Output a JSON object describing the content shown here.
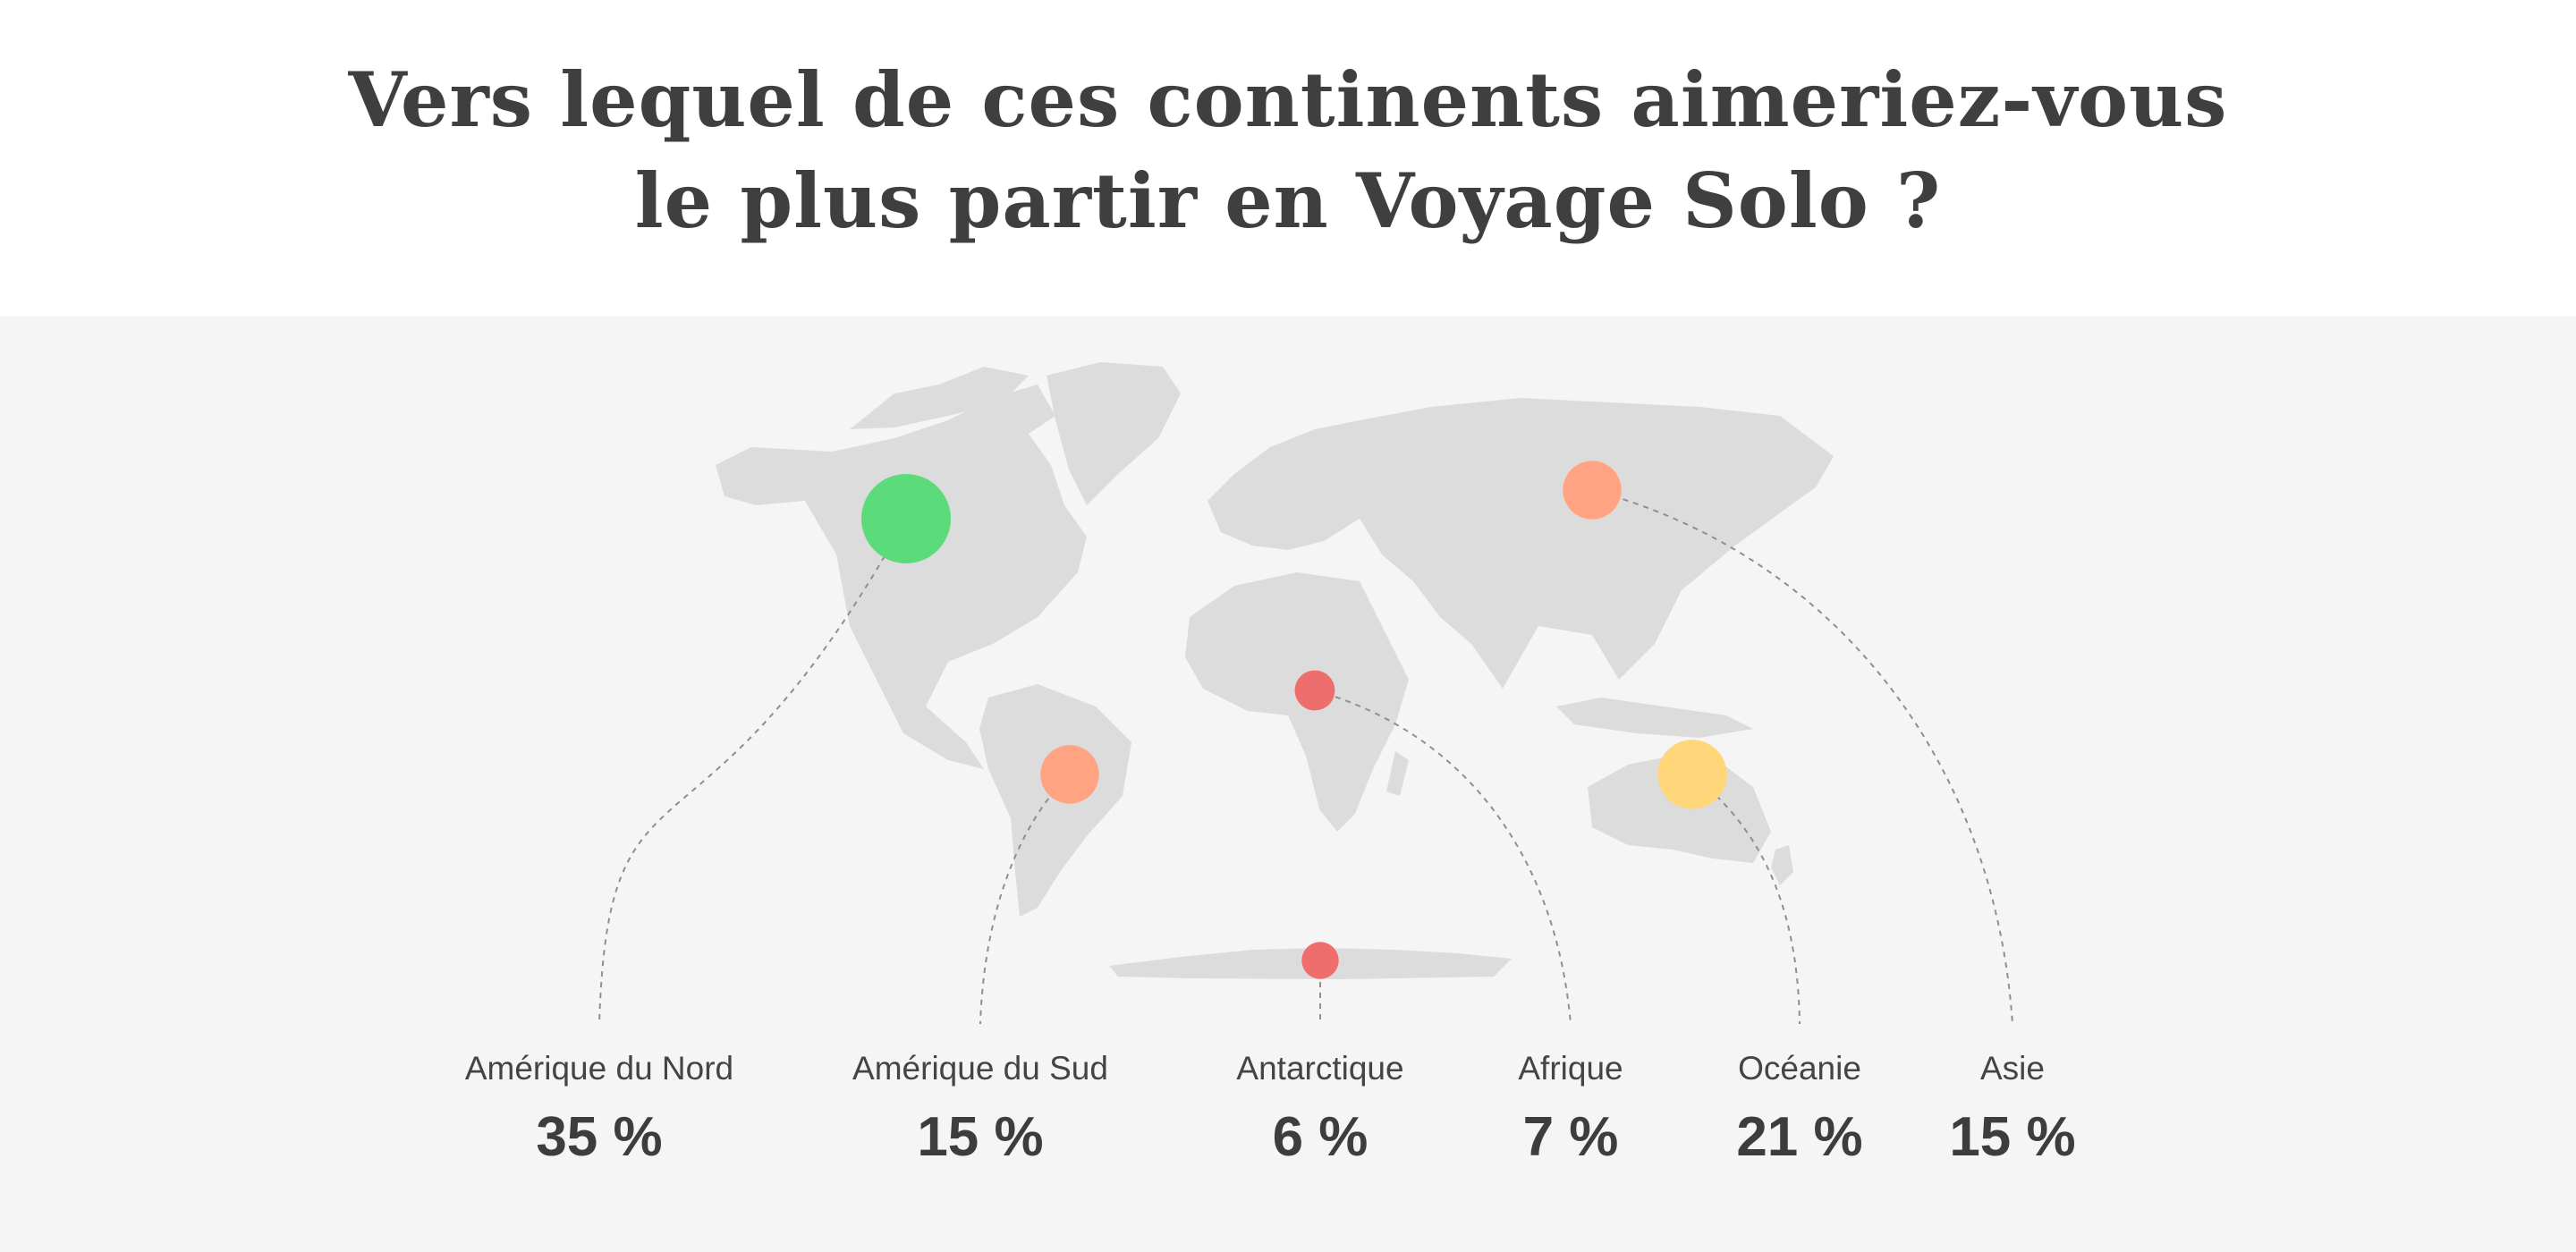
{
  "header": {
    "title_line1": "Vers lequel de ces continents aimeriez-vous",
    "title_line2": "le plus partir en Voyage Solo ?"
  },
  "chart_data": {
    "type": "bubble-map",
    "title": "Vers lequel de ces continents aimeriez-vous le plus partir en Voyage Solo ?",
    "unit": "%",
    "series": [
      {
        "name": "Amérique du Nord",
        "value": 35,
        "value_label": "35 %",
        "color": "#5cdb7a"
      },
      {
        "name": "Amérique du Sud",
        "value": 15,
        "value_label": "15 %",
        "color": "#ffa382"
      },
      {
        "name": "Antarctique",
        "value": 6,
        "value_label": "6 %",
        "color": "#ee6e6e"
      },
      {
        "name": "Afrique",
        "value": 7,
        "value_label": "7 %",
        "color": "#ee6e6e"
      },
      {
        "name": "Océanie",
        "value": 21,
        "value_label": "21 %",
        "color": "#ffd77a"
      },
      {
        "name": "Asie",
        "value": 15,
        "value_label": "15 %",
        "color": "#ffa382"
      }
    ]
  },
  "colors": {
    "land": "#dcdcdc",
    "panel_background": "#f5f5f5",
    "title": "#3f3f3f",
    "leader_line": "#8f8f8f"
  }
}
